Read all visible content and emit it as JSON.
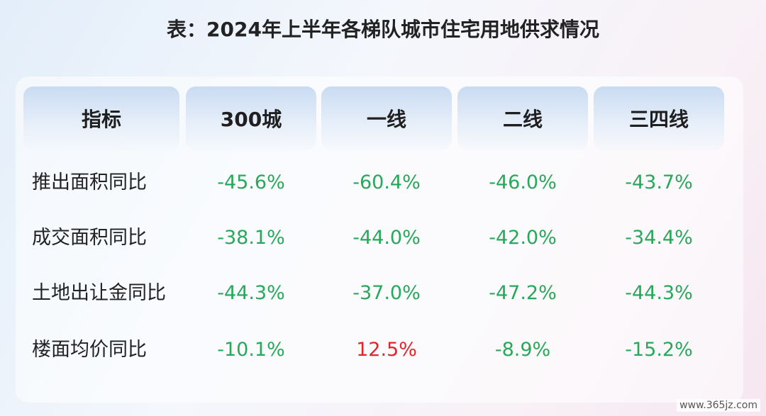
{
  "title": "表：2024年上半年各梯队城市住宅用地供求情况",
  "table": {
    "header": [
      "指标",
      "300城",
      "一线",
      "二线",
      "三四线"
    ],
    "rows": [
      [
        "推出面积同比",
        "-45.6%",
        "-60.4%",
        "-46.0%",
        "-43.7%"
      ],
      [
        "成交面积同比",
        "-38.1%",
        "-44.0%",
        "-42.0%",
        "-34.4%"
      ],
      [
        "土地出让金同比",
        "-44.3%",
        "-37.0%",
        "-47.2%",
        "-44.3%"
      ],
      [
        "楼面均价同比",
        "-10.1%",
        "12.5%",
        "-8.9%",
        "-15.2%"
      ]
    ]
  },
  "watermark": "www.365jz.com"
}
